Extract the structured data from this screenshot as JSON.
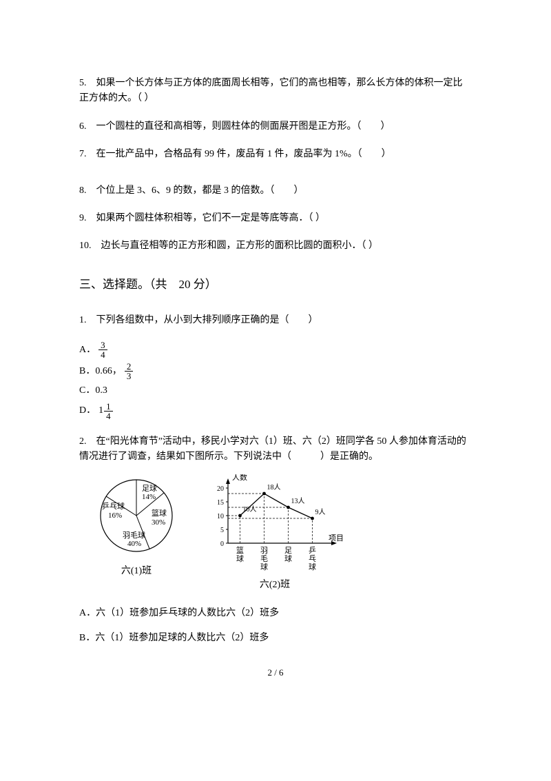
{
  "questions": {
    "q5": "5.　如果一个长方体与正方体的底面周长相等，它们的高也相等，那么长方体的体积一定比正方体的大。（ ）",
    "q6": "6.　一个圆柱的直径和高相等，则圆柱体的侧面展开图是正方形。（　　）",
    "q7": "7.　在一批产品中，合格品有 99 件，废品有 1 件，废品率为 1%。（　　）",
    "q8": "8.　个位上是 3、6、9 的数，都是 3 的倍数。（　　）",
    "q9": "9.　如果两个圆柱体积相等，它们不一定是等底等高．（ ）",
    "q10": "10.　边长与直径相等的正方形和圆，正方形的面积比圆的面积小．（ ）"
  },
  "section3": {
    "title": "三、选择题。（共　20 分）",
    "q1": {
      "stem": "1.　下列各组数中，从小到大排列顺序正确的是（　　）",
      "a_label": "A．",
      "a_frac_num": "3",
      "a_frac_den": "4",
      "b_label": "B．0.66，",
      "b_frac_num": "2",
      "b_frac_den": "3",
      "c_label": "C．0.3",
      "d_label": "D．",
      "d_whole": "1",
      "d_frac_num": "1",
      "d_frac_den": "4"
    },
    "q2": {
      "stem": "2.　在“阳光体育节”活动中，移民小学对六（1）班、六（2）班同学各 50 人参加体育活动的情况进行了调查，结果如下图所示。下列说法中（　　　）是正确的。",
      "optA": "A．六（1）班参加乒乓球的人数比六（2）班多",
      "optB": "B．六（1）班参加足球的人数比六（2）班多",
      "pie": {
        "label": "六(1)班",
        "slices": {
          "football": {
            "text": "足球",
            "pct": "14%",
            "color": "#ffffff"
          },
          "basketball": {
            "text": "篮球",
            "pct": "30%",
            "color": "#ffffff"
          },
          "badminton": {
            "text": "羽毛球",
            "pct": "40%",
            "color": "#ffffff"
          },
          "pingpong": {
            "text": "乒乓球",
            "pct": "16%",
            "color": "#ffffff"
          }
        }
      },
      "line": {
        "label": "六(2)班",
        "y_title": "人数",
        "x_title": "项目",
        "y_ticks": [
          "0",
          "5",
          "10",
          "15",
          "20"
        ],
        "categories": [
          "篮球",
          "羽毛球",
          "足球",
          "乒乓球"
        ],
        "values": [
          10,
          18,
          13,
          9
        ],
        "value_labels": [
          "10人",
          "18人",
          "13人",
          "9人"
        ],
        "line_color": "#000000",
        "grid_dash": "3,2"
      }
    }
  },
  "page_num": "2 / 6"
}
